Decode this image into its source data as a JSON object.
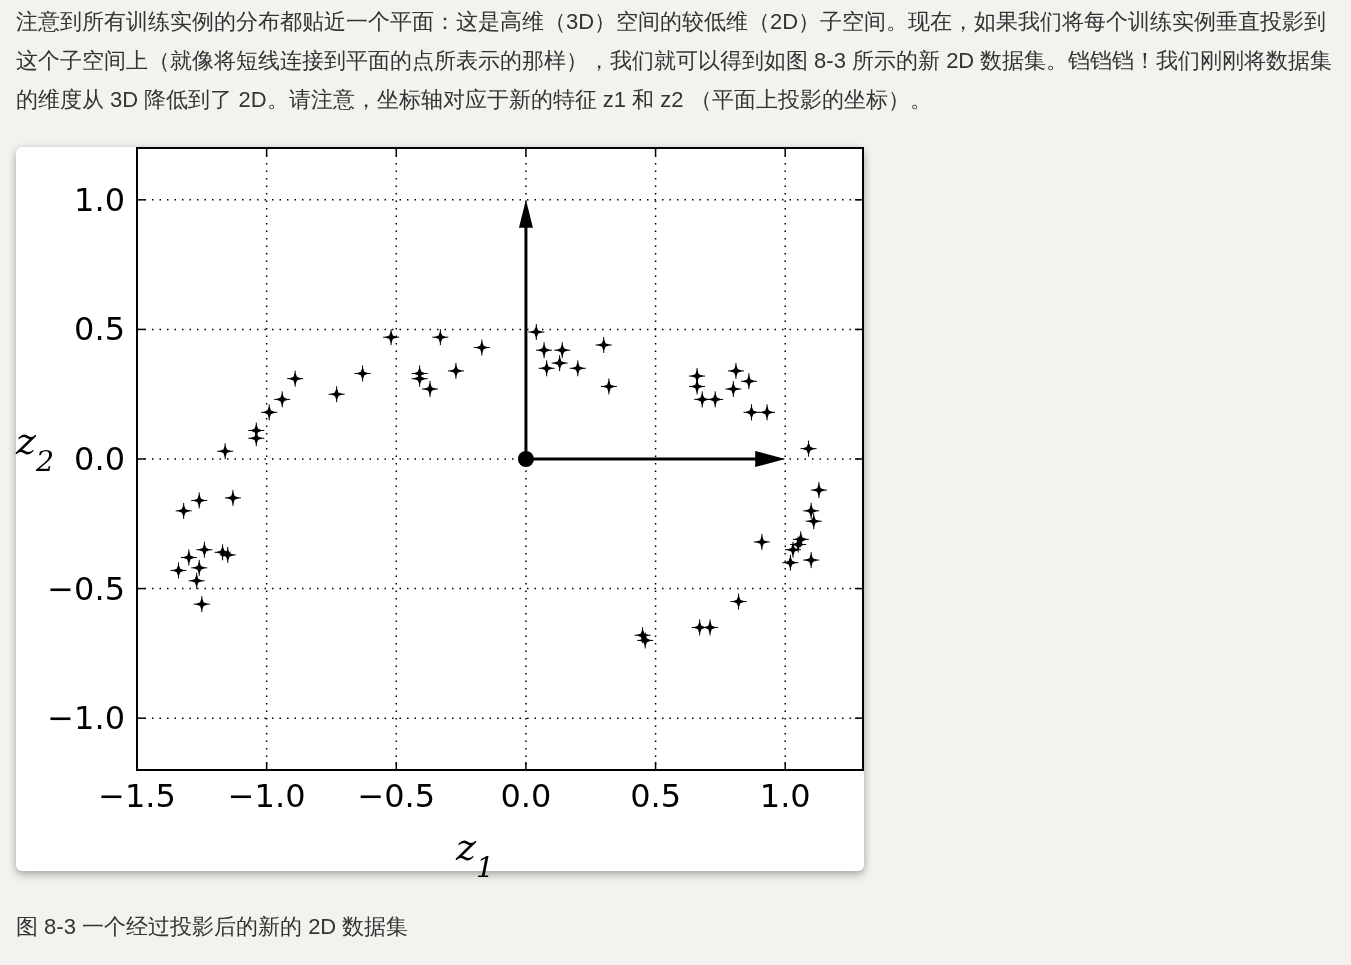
{
  "chart_data": {
    "type": "scatter",
    "title": "图 8-3 一个经过投影后的新的 2D 数据集",
    "annotations": [
      "注意到所有训练实例的分布都贴近一个平面：这是高维（3D）空间的较低维（2D）子空间。现在，如果我们将每个训练实例垂直投影到这个子空间上（就像将短线连接到平面的点所表示的那样），我们就可以得到如图 8-3 所示的新 2D 数据集。铛铛铛！我们刚刚将数据集的维度从 3D 降低到了 2D。请注意，坐标轴对应于新的特征 z1 和 z2 （平面上投影的坐标）。"
    ],
    "xlabel": "z$_{1}$",
    "ylabel": "z$_{2}$",
    "x": [
      -1.32,
      -1.26,
      -1.13,
      -1.34,
      -1.3,
      -1.24,
      -1.26,
      -1.27,
      -1.25,
      -1.17,
      -1.15,
      -1.16,
      -1.04,
      -1.04,
      -0.99,
      -0.94,
      -0.89,
      -0.73,
      -0.63,
      -0.52,
      -0.41,
      -0.41,
      -0.37,
      -0.33,
      -0.27,
      -0.17,
      0.04,
      0.07,
      0.08,
      0.14,
      0.13,
      0.2,
      0.3,
      0.32,
      0.66,
      0.66,
      0.68,
      0.73,
      0.81,
      0.8,
      0.86,
      0.87,
      0.93,
      1.09,
      1.13,
      1.1,
      1.11,
      0.91,
      1.02,
      1.03,
      1.05,
      1.06,
      1.1,
      0.82,
      0.67,
      0.71,
      0.45,
      0.46
    ],
    "series": [
      {
        "color": "#000000",
        "values": [
          -0.2,
          -0.16,
          -0.15,
          -0.43,
          -0.38,
          -0.35,
          -0.42,
          -0.47,
          -0.56,
          -0.36,
          -0.37,
          0.03,
          0.11,
          0.08,
          0.18,
          0.23,
          0.31,
          0.25,
          0.33,
          0.47,
          0.33,
          0.31,
          0.27,
          0.47,
          0.34,
          0.43,
          0.49,
          0.42,
          0.35,
          0.42,
          0.37,
          0.35,
          0.44,
          0.28,
          0.32,
          0.28,
          0.23,
          0.23,
          0.34,
          0.27,
          0.3,
          0.18,
          0.18,
          0.04,
          -0.12,
          -0.2,
          -0.24,
          -0.32,
          -0.4,
          -0.35,
          -0.33,
          -0.31,
          -0.39,
          -0.55,
          -0.65,
          -0.65,
          -0.68,
          -0.7
        ]
      }
    ],
    "xlim": [
      -1.5,
      1.3
    ],
    "ylim": [
      -1.2,
      1.2
    ],
    "xticks": [
      {
        "value": -1.5,
        "label": "−1.5"
      },
      {
        "value": -1.0,
        "label": "−1.0"
      },
      {
        "value": -0.5,
        "label": "−0.5"
      },
      {
        "value": 0.0,
        "label": "0.0"
      },
      {
        "value": 0.5,
        "label": "0.5"
      },
      {
        "value": 1.0,
        "label": "1.0"
      }
    ],
    "yticks": [
      {
        "value": -1.0,
        "label": "−1.0"
      },
      {
        "value": -0.5,
        "label": "−0.5"
      },
      {
        "value": 0.0,
        "label": "0.0"
      },
      {
        "value": 0.5,
        "label": "0.5"
      },
      {
        "value": 1.0,
        "label": "1.0"
      }
    ],
    "grid": true,
    "marker": "star"
  }
}
